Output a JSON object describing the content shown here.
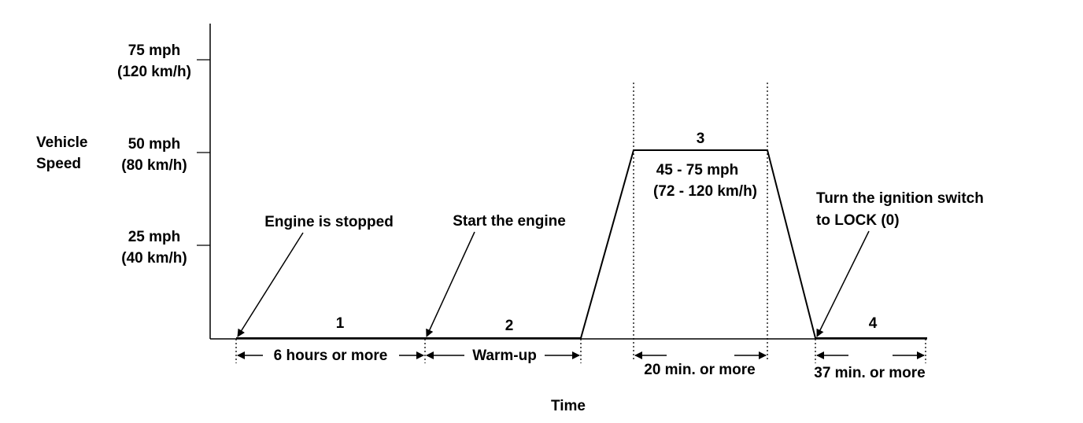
{
  "y_axis": {
    "title_lines": [
      "Vehicle",
      "Speed"
    ],
    "ticks": [
      {
        "mph": "75 mph",
        "kmh": "(120 km/h)"
      },
      {
        "mph": "50 mph",
        "kmh": "(80 km/h)"
      },
      {
        "mph": "25 mph",
        "kmh": "(40 km/h)"
      }
    ]
  },
  "x_axis": {
    "title": "Time"
  },
  "phases": {
    "p1": {
      "number": "1",
      "duration": "6 hours or more"
    },
    "p2": {
      "number": "2",
      "duration": "Warm-up"
    },
    "p3": {
      "number": "3",
      "speed_mph": "45 - 75 mph",
      "speed_kmh": "(72 - 120 km/h)",
      "duration": "20 min. or more"
    },
    "p4": {
      "number": "4",
      "duration": "37 min. or more"
    }
  },
  "annotations": {
    "engine_stopped": "Engine is stopped",
    "start_engine": "Start the engine",
    "ignition_lines": [
      "Turn the ignition switch",
      "to LOCK (0)"
    ]
  }
}
